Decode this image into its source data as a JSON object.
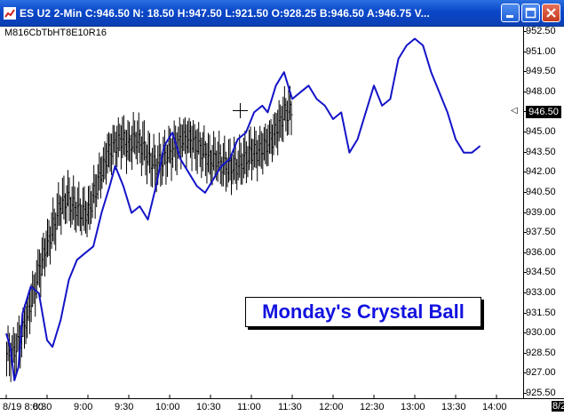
{
  "window": {
    "title": "ES U2 2-Min C:946.50 N: 18.50 H:947.50 L:921.50 O:928.25 B:946.50 A:946.75 V..."
  },
  "overlay_label": "M816CbTbHT8E10R16",
  "callout": "Monday's Crystal Ball",
  "y_ticks": [
    "952.50",
    "951.00",
    "949.50",
    "948.00",
    "946.50",
    "945.00",
    "943.50",
    "942.00",
    "940.50",
    "939.00",
    "937.50",
    "936.00",
    "934.50",
    "933.00",
    "931.50",
    "930.00",
    "928.50",
    "927.00",
    "925.50"
  ],
  "current_price": "946.50",
  "x_ticks": [
    "8/19 8:00",
    "8:30",
    "9:00",
    "9:30",
    "10:00",
    "10:30",
    "11:00",
    "11:30",
    "12:00",
    "12:30",
    "13:00",
    "13:30",
    "14:00"
  ],
  "x_edge_label": "8/2",
  "colors": {
    "titlebar": "#0a47c9",
    "projection_line": "#1414c8",
    "bars": "#000000",
    "callout_text": "#1212e0"
  },
  "chart_data": {
    "type": "line",
    "ylim": [
      925.5,
      952.5
    ],
    "x_range": [
      "8:00",
      "14:00"
    ],
    "series": [
      {
        "style": "ohlc-bars",
        "x": [
          "8:00",
          "8:05",
          "8:10",
          "8:15",
          "8:20",
          "8:25",
          "8:30",
          "8:35",
          "8:40",
          "8:45",
          "8:50",
          "8:55",
          "9:00",
          "9:05",
          "9:10",
          "9:15",
          "9:20",
          "9:25",
          "9:30",
          "9:35",
          "9:40",
          "9:45",
          "9:50",
          "9:55",
          "10:00",
          "10:05",
          "10:10",
          "10:15",
          "10:20",
          "10:25",
          "10:30",
          "10:35",
          "10:40",
          "10:45",
          "10:50",
          "10:55",
          "11:00",
          "11:05",
          "11:10",
          "11:15",
          "11:20",
          "11:25"
        ],
        "values": [
          928.5,
          929.5,
          931.0,
          933.0,
          935.0,
          936.5,
          938.0,
          939.5,
          940.0,
          939.5,
          939.0,
          939.0,
          940.5,
          942.0,
          943.5,
          944.0,
          944.5,
          944.0,
          944.5,
          944.0,
          943.0,
          942.5,
          943.0,
          943.5,
          944.0,
          944.5,
          944.5,
          944.0,
          943.5,
          943.0,
          943.0,
          942.5,
          942.5,
          942.5,
          943.0,
          943.5,
          943.5,
          944.0,
          944.5,
          945.5,
          946.5,
          946.5
        ]
      },
      {
        "style": "line",
        "x": [
          "8:00",
          "8:03",
          "8:06",
          "8:09",
          "8:12",
          "8:18",
          "8:24",
          "8:30",
          "8:34",
          "8:40",
          "8:46",
          "8:52",
          "8:58",
          "9:04",
          "9:10",
          "9:16",
          "9:20",
          "9:26",
          "9:32",
          "9:38",
          "9:44",
          "9:50",
          "9:56",
          "10:02",
          "10:08",
          "10:14",
          "10:20",
          "10:26",
          "10:32",
          "10:38",
          "10:44",
          "10:50",
          "10:56",
          "11:02",
          "11:08",
          "11:12",
          "11:18",
          "11:24",
          "11:30",
          "11:36",
          "11:42",
          "11:48",
          "11:54",
          "12:00",
          "12:06",
          "12:12",
          "12:18",
          "12:24",
          "12:30",
          "12:36",
          "12:42",
          "12:48",
          "12:54",
          "13:00",
          "13:06",
          "13:12",
          "13:18",
          "13:24",
          "13:30",
          "13:36",
          "13:42",
          "13:48"
        ],
        "values": [
          930.0,
          929.0,
          926.5,
          927.5,
          931.5,
          933.5,
          933.0,
          929.5,
          929.0,
          931.0,
          934.0,
          935.5,
          936.0,
          936.5,
          939.0,
          941.0,
          942.5,
          941.0,
          939.0,
          939.5,
          938.5,
          941.0,
          944.0,
          945.0,
          943.0,
          942.0,
          941.0,
          940.5,
          941.5,
          942.5,
          943.0,
          944.5,
          945.0,
          946.5,
          947.0,
          946.5,
          948.5,
          949.5,
          947.5,
          948.0,
          948.5,
          947.5,
          947.0,
          946.0,
          946.5,
          943.5,
          944.5,
          946.5,
          948.5,
          947.0,
          947.5,
          950.5,
          951.5,
          952.0,
          951.5,
          949.5,
          948.0,
          946.5,
          944.5,
          943.5,
          943.5,
          944.0
        ]
      }
    ]
  }
}
